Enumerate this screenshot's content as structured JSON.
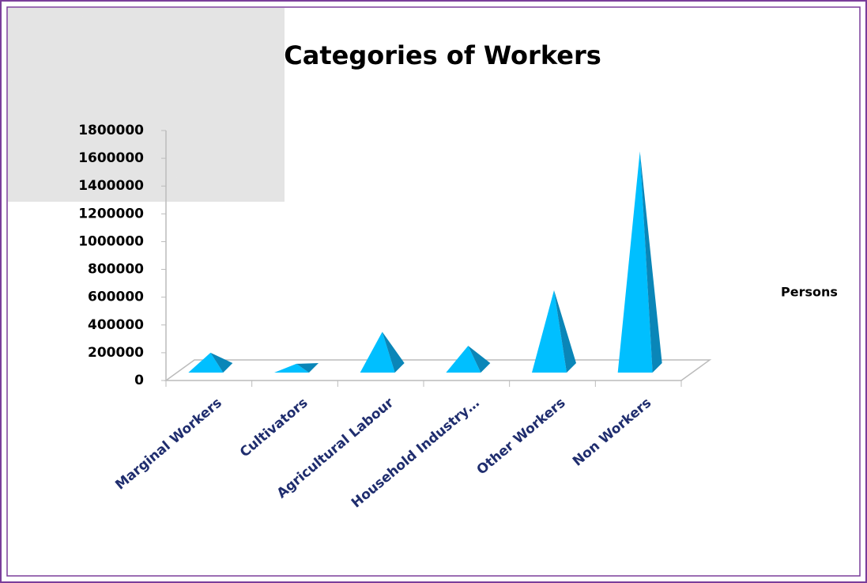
{
  "chart_data": {
    "type": "pyramid-bar",
    "title": "Categories of Workers",
    "categories": [
      "Marginal Workers",
      "Cultivators",
      "Agricultural Labour",
      "Household Industry…",
      "Other Workers",
      "Non Workers"
    ],
    "series": [
      {
        "name": "Persons",
        "color": "#00bfff",
        "values": [
          200000,
          120000,
          350000,
          250000,
          650000,
          1650000
        ]
      }
    ],
    "ylim": [
      0,
      1800000
    ],
    "yticks": [
      0,
      200000,
      400000,
      600000,
      800000,
      1000000,
      1200000,
      1400000,
      1600000,
      1800000
    ],
    "legend": "right"
  }
}
